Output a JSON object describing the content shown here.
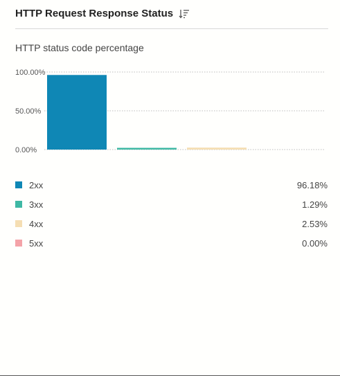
{
  "header": {
    "title": "HTTP Request Response Status"
  },
  "chart_data": {
    "type": "bar",
    "title": "HTTP status code percentage",
    "categories": [
      "2xx",
      "3xx",
      "4xx",
      "5xx"
    ],
    "values": [
      96.18,
      1.29,
      2.53,
      0.0
    ],
    "colors": [
      "#0f87b5",
      "#3fb8a4",
      "#f5deb3",
      "#f4a3a8"
    ],
    "ylim": [
      0,
      100
    ],
    "y_ticks": [
      {
        "value": 100,
        "label": "100.00%"
      },
      {
        "value": 50,
        "label": "50.00%"
      },
      {
        "value": 0,
        "label": "0.00%"
      }
    ],
    "grid": true,
    "legend_position": "bottom",
    "legend": [
      {
        "label": "2xx",
        "value": "96.18%"
      },
      {
        "label": "3xx",
        "value": "1.29%"
      },
      {
        "label": "4xx",
        "value": "2.53%"
      },
      {
        "label": "5xx",
        "value": "0.00%"
      }
    ]
  }
}
